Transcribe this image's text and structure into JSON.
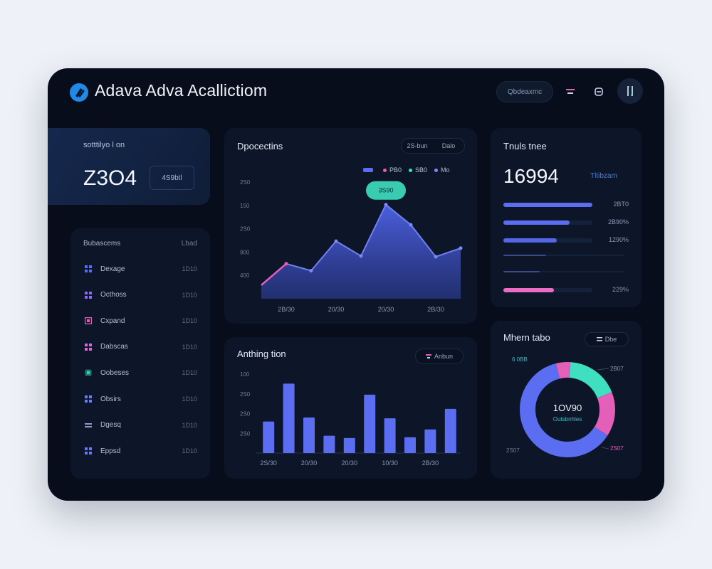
{
  "app": {
    "title": "Adava Adva Acallictiom"
  },
  "header": {
    "pill_label": "Qbdeaxmc",
    "icons": [
      "filter-icon",
      "settings-icon",
      "user-icon"
    ]
  },
  "kpi": {
    "label": "sotttilyo l on",
    "value": "Z3O4",
    "badge": "4S9btl"
  },
  "list": {
    "header_left": "Bubascems",
    "header_right": "Lbad",
    "items": [
      {
        "label": "Dexage",
        "value": "1D10",
        "icon": "grid-icon",
        "color": "#5b6df0"
      },
      {
        "label": "Octhoss",
        "value": "1D10",
        "icon": "grid-icon",
        "color": "#8e6af0"
      },
      {
        "label": "Cxpand",
        "value": "1D10",
        "icon": "box-icon",
        "color": "#e25fb8"
      },
      {
        "label": "Dabscas",
        "value": "1D10",
        "icon": "grid-icon",
        "color": "#d46ad8"
      },
      {
        "label": "Oobeses",
        "value": "1D10",
        "icon": "cube-icon",
        "color": "#35d3b5"
      },
      {
        "label": "Obsirs",
        "value": "1D10",
        "icon": "grid-icon",
        "color": "#6b7cf5"
      },
      {
        "label": "Dgesq",
        "value": "1D10",
        "icon": "bars-icon",
        "color": "#8c9cc6"
      },
      {
        "label": "Eppsd",
        "value": "1D10",
        "icon": "grid-icon",
        "color": "#6d78f0"
      }
    ]
  },
  "line_panel": {
    "title": "Dpocectins",
    "segments": [
      "2S-bun",
      "Dalo"
    ],
    "legend": [
      {
        "label": "",
        "color": "#5b6df0",
        "kind": "swatch"
      },
      {
        "label": "PB0",
        "color": "#e35fb8",
        "kind": "dot"
      },
      {
        "label": "SB0",
        "color": "#3fe0c2",
        "kind": "dot"
      },
      {
        "label": "Mo",
        "color": "#7b8af7",
        "kind": "dot"
      }
    ],
    "tooltip": "3S90"
  },
  "bar_panel": {
    "title": "Anthing tion",
    "chip": "Anbun"
  },
  "progress_panel": {
    "title": "Tnuls tnee",
    "value": "16994",
    "sub": "Tltibzam",
    "rows": [
      {
        "pct_label": "2BT0",
        "fraction": 1.0,
        "color": "#5b6df0"
      },
      {
        "pct_label": "2B90%",
        "fraction": 0.74,
        "color": "#5b6df0"
      },
      {
        "pct_label": "1290%",
        "fraction": 0.6,
        "color": "#5468e6"
      },
      {
        "pct_label": "",
        "fraction": 0.35,
        "color": "#3a4b8c"
      },
      {
        "pct_label": "",
        "fraction": 0.3,
        "color": "#3a4b8c"
      },
      {
        "pct_label": "229%",
        "fraction": 0.57,
        "color": "#ea6cc4"
      }
    ]
  },
  "donut_panel": {
    "title": "Mhern tabo",
    "chip": "Dbe",
    "center_value": "1OV90",
    "center_sub": "Outsbnhles",
    "labels": {
      "top_left": "6 0BB",
      "top_right": "2B07",
      "bottom_left": "2S07",
      "bottom_right": "2S07"
    }
  },
  "chart_data": [
    {
      "type": "area",
      "title": "Dpocectins",
      "x": [
        "",
        "2B/30",
        "",
        "20/30",
        "",
        "20/30",
        "",
        "2B/30",
        ""
      ],
      "series": [
        {
          "values": [
            35,
            90,
            72,
            148,
            110,
            242,
            190,
            108,
            130
          ]
        }
      ],
      "highlight_series": {
        "values": [
          35,
          90
        ],
        "color": "#e35fb8"
      },
      "yticks": [
        "",
        "400",
        "900",
        "2S0",
        "150",
        "2S0"
      ],
      "ylim": [
        0,
        300
      ]
    },
    {
      "type": "bar",
      "title": "Anthing tion",
      "categories": [
        "2S/30",
        "",
        "20/30",
        "",
        "20/30",
        "",
        "10/30",
        "",
        "2B/30",
        ""
      ],
      "values": [
        40,
        88,
        45,
        22,
        19,
        74,
        44,
        20,
        30,
        56
      ],
      "yticks": [
        "",
        "2S0",
        "2S0",
        "2S0",
        "100"
      ],
      "ylim": [
        0,
        100
      ]
    },
    {
      "type": "pie",
      "title": "Mhern tabo",
      "slices": [
        {
          "value": 62,
          "color": "#5b6df0"
        },
        {
          "value": 5,
          "color": "#e35fb8"
        },
        {
          "value": 18,
          "color": "#3fe0c2"
        },
        {
          "value": 15,
          "color": "#e35fb8"
        }
      ]
    }
  ]
}
